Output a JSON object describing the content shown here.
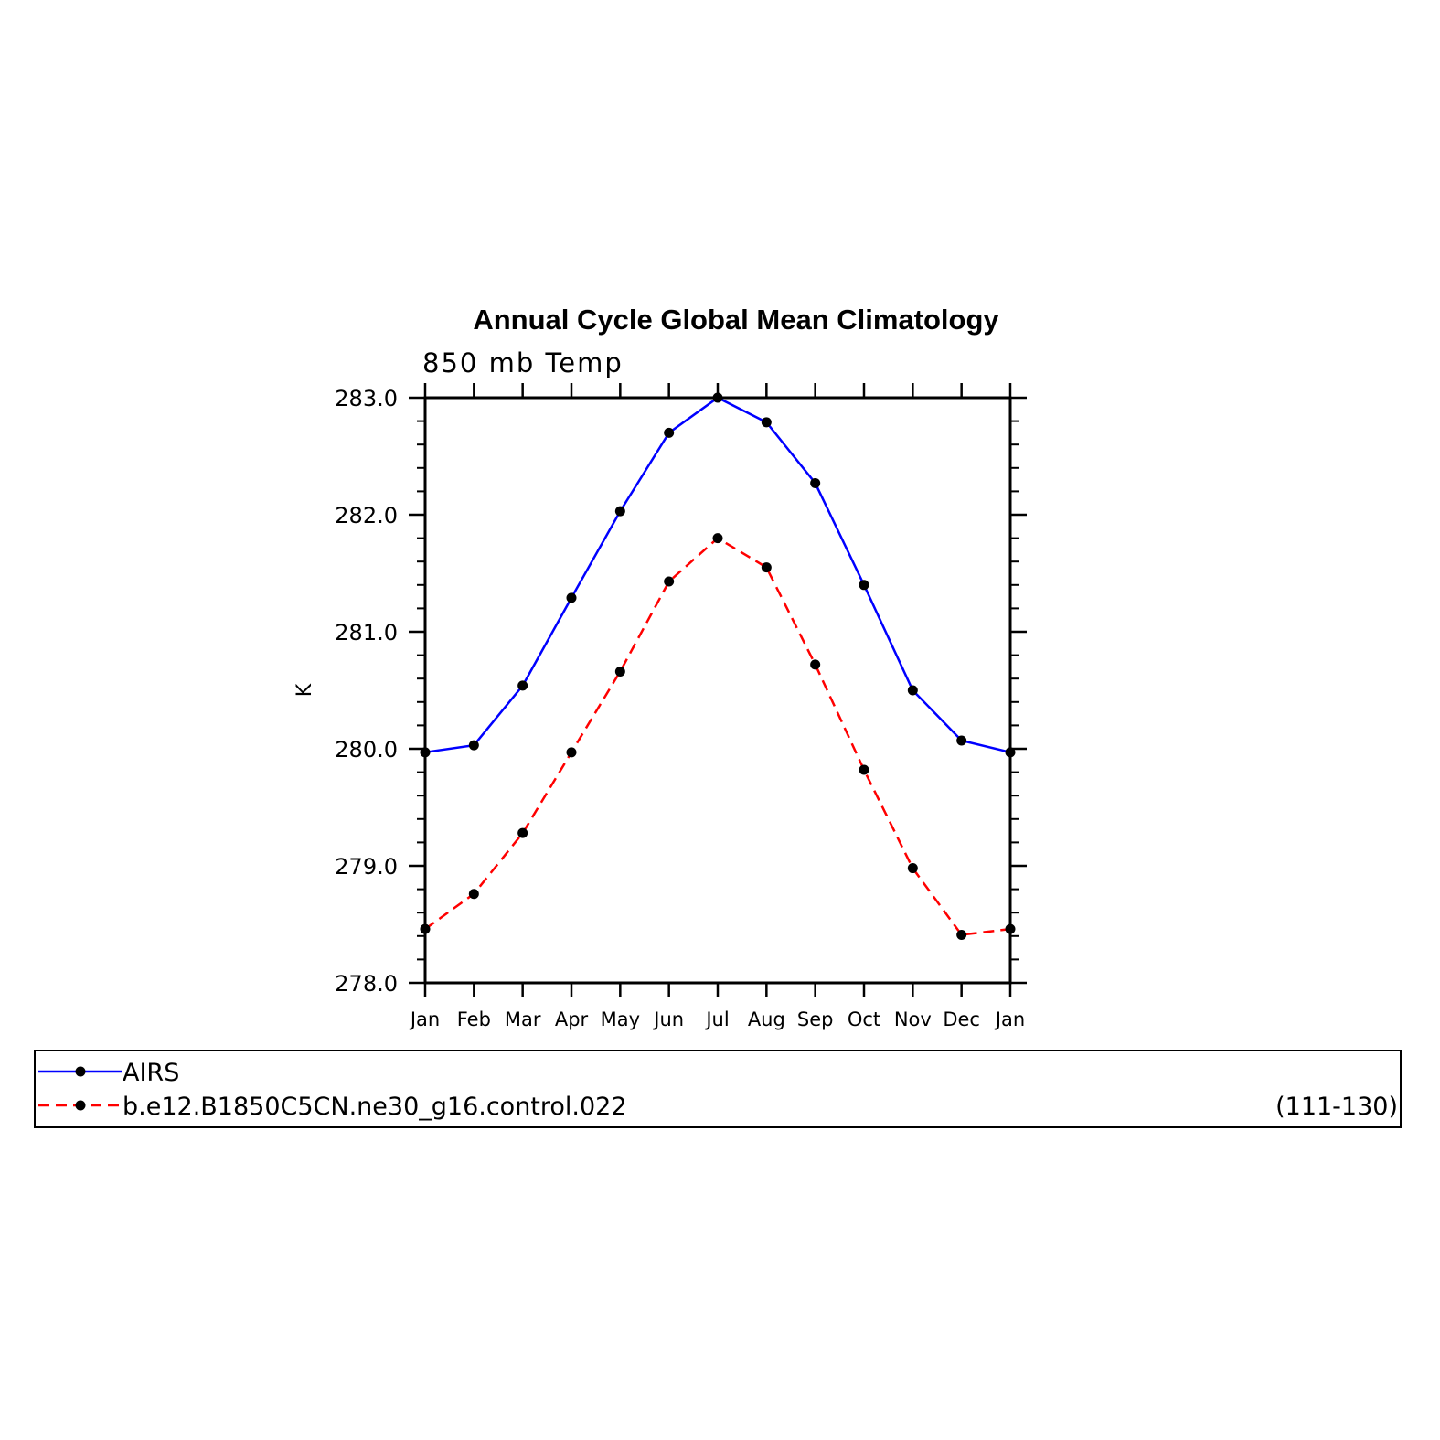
{
  "chart_data": {
    "type": "line",
    "title": "Annual Cycle Global Mean Climatology",
    "subtitle": "850 mb Temp",
    "ylabel": "K",
    "xlabel": "",
    "categories": [
      "Jan",
      "Feb",
      "Mar",
      "Apr",
      "May",
      "Jun",
      "Jul",
      "Aug",
      "Sep",
      "Oct",
      "Nov",
      "Dec",
      "Jan"
    ],
    "ylim": [
      278.0,
      283.0
    ],
    "yticks": [
      "278.0",
      "279.0",
      "280.0",
      "281.0",
      "282.0",
      "283.0"
    ],
    "grid": false,
    "legend_placement": "bottom",
    "series": [
      {
        "name": "AIRS",
        "color": "#0000ff",
        "dash": "solid",
        "marker": "filled-circle",
        "values": [
          279.97,
          280.03,
          280.54,
          281.29,
          282.03,
          282.7,
          283.0,
          282.79,
          282.27,
          281.4,
          280.5,
          280.07,
          279.97
        ]
      },
      {
        "name": "b.e12.B1850C5CN.ne30_g16.control.022",
        "color": "#ff0000",
        "dash": "dashed",
        "marker": "filled-circle",
        "values": [
          278.46,
          278.76,
          279.28,
          279.97,
          280.66,
          281.43,
          281.8,
          281.55,
          280.72,
          279.82,
          278.98,
          278.41,
          278.46
        ]
      }
    ],
    "legend_note": "(111-130)"
  }
}
